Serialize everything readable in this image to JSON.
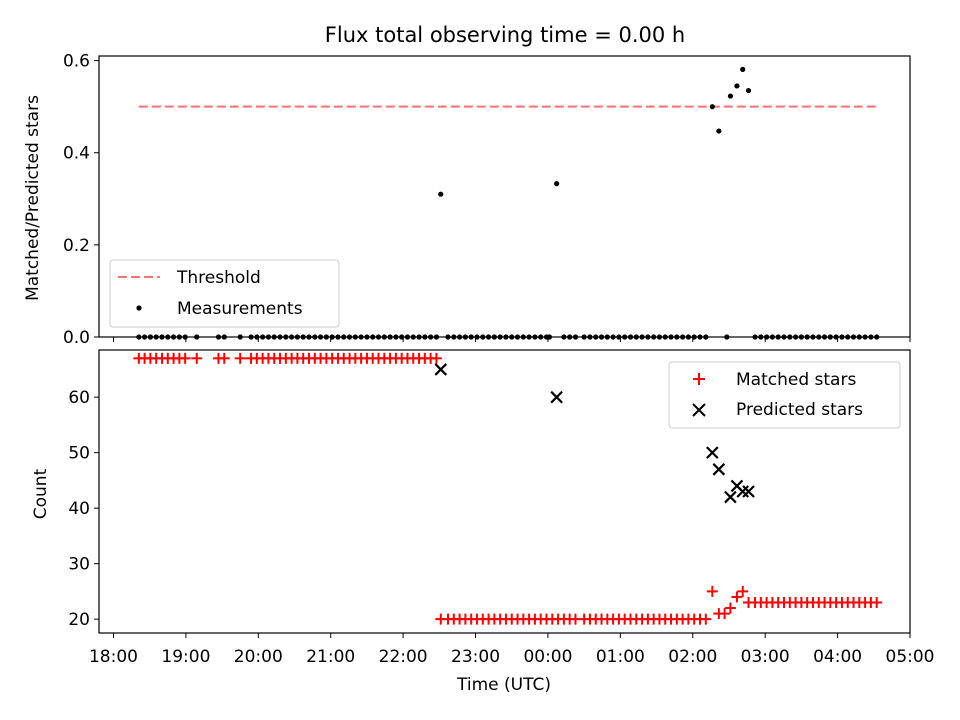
{
  "chart_data": [
    {
      "type": "scatter",
      "title": "Flux total observing time = 0.00 h",
      "xlabel": "",
      "ylabel": "Matched/Predicted stars",
      "xlim_hours": [
        17.8,
        29.0
      ],
      "ylim": [
        0,
        0.61
      ],
      "yticks": [
        0.0,
        0.2,
        0.4,
        0.6
      ],
      "ytick_labels": [
        "0.0",
        "0.2",
        "0.4",
        "0.6"
      ],
      "legend_position": "lower-left",
      "threshold": {
        "name": "Threshold",
        "value": 0.5,
        "x_range_hours": [
          18.35,
          28.55
        ],
        "color": "#ff7070",
        "style": "dashed"
      },
      "series": [
        {
          "name": "Measurements",
          "marker": "dot",
          "color": "#000000",
          "points": [
            [
              18.35,
              0
            ],
            [
              18.43,
              0
            ],
            [
              18.51,
              0
            ],
            [
              18.59,
              0
            ],
            [
              18.67,
              0
            ],
            [
              18.75,
              0
            ],
            [
              18.83,
              0
            ],
            [
              18.91,
              0
            ],
            [
              18.99,
              0
            ],
            [
              19.15,
              0
            ],
            [
              19.45,
              0
            ],
            [
              19.53,
              0
            ],
            [
              19.75,
              0
            ],
            [
              19.9,
              0
            ],
            [
              19.98,
              0
            ],
            [
              20.06,
              0
            ],
            [
              20.14,
              0
            ],
            [
              20.22,
              0
            ],
            [
              20.3,
              0
            ],
            [
              20.38,
              0
            ],
            [
              20.46,
              0
            ],
            [
              20.54,
              0
            ],
            [
              20.62,
              0
            ],
            [
              20.7,
              0
            ],
            [
              20.78,
              0
            ],
            [
              20.86,
              0
            ],
            [
              20.94,
              0
            ],
            [
              21.02,
              0
            ],
            [
              21.1,
              0
            ],
            [
              21.18,
              0
            ],
            [
              21.26,
              0
            ],
            [
              21.34,
              0
            ],
            [
              21.42,
              0
            ],
            [
              21.5,
              0
            ],
            [
              21.58,
              0
            ],
            [
              21.66,
              0
            ],
            [
              21.74,
              0
            ],
            [
              21.82,
              0
            ],
            [
              21.9,
              0
            ],
            [
              21.98,
              0
            ],
            [
              22.06,
              0
            ],
            [
              22.14,
              0
            ],
            [
              22.22,
              0
            ],
            [
              22.3,
              0
            ],
            [
              22.38,
              0
            ],
            [
              22.46,
              0
            ],
            [
              22.52,
              0.31
            ],
            [
              22.62,
              0
            ],
            [
              22.7,
              0
            ],
            [
              22.78,
              0
            ],
            [
              22.86,
              0
            ],
            [
              22.94,
              0
            ],
            [
              23.02,
              0
            ],
            [
              23.1,
              0
            ],
            [
              23.18,
              0
            ],
            [
              23.26,
              0
            ],
            [
              23.34,
              0
            ],
            [
              23.42,
              0
            ],
            [
              23.5,
              0
            ],
            [
              23.58,
              0
            ],
            [
              23.66,
              0
            ],
            [
              23.74,
              0
            ],
            [
              23.82,
              0
            ],
            [
              23.9,
              0
            ],
            [
              23.98,
              0
            ],
            [
              24.02,
              0
            ],
            [
              24.12,
              0.333
            ],
            [
              24.22,
              0
            ],
            [
              24.3,
              0
            ],
            [
              24.38,
              0
            ],
            [
              24.5,
              0
            ],
            [
              24.58,
              0
            ],
            [
              24.66,
              0
            ],
            [
              24.74,
              0
            ],
            [
              24.82,
              0
            ],
            [
              24.9,
              0
            ],
            [
              24.98,
              0
            ],
            [
              25.06,
              0
            ],
            [
              25.14,
              0
            ],
            [
              25.22,
              0
            ],
            [
              25.3,
              0
            ],
            [
              25.38,
              0
            ],
            [
              25.46,
              0
            ],
            [
              25.54,
              0
            ],
            [
              25.62,
              0
            ],
            [
              25.7,
              0
            ],
            [
              25.78,
              0
            ],
            [
              25.86,
              0
            ],
            [
              25.94,
              0
            ],
            [
              26.02,
              0
            ],
            [
              26.1,
              0
            ],
            [
              26.18,
              0
            ],
            [
              26.27,
              0.5
            ],
            [
              26.36,
              0.447
            ],
            [
              26.47,
              0
            ],
            [
              26.52,
              0.523
            ],
            [
              26.61,
              0.545
            ],
            [
              26.69,
              0.581
            ],
            [
              26.77,
              0.535
            ],
            [
              26.86,
              0
            ],
            [
              26.94,
              0
            ],
            [
              27.02,
              0
            ],
            [
              27.1,
              0
            ],
            [
              27.18,
              0
            ],
            [
              27.26,
              0
            ],
            [
              27.34,
              0
            ],
            [
              27.42,
              0
            ],
            [
              27.5,
              0
            ],
            [
              27.58,
              0
            ],
            [
              27.66,
              0
            ],
            [
              27.74,
              0
            ],
            [
              27.82,
              0
            ],
            [
              27.9,
              0
            ],
            [
              27.98,
              0
            ],
            [
              28.06,
              0
            ],
            [
              28.14,
              0
            ],
            [
              28.22,
              0
            ],
            [
              28.3,
              0
            ],
            [
              28.38,
              0
            ],
            [
              28.46,
              0
            ],
            [
              28.54,
              0
            ]
          ]
        }
      ]
    },
    {
      "type": "scatter",
      "title": "",
      "xlabel": "Time (UTC)",
      "ylabel": "Count",
      "xlim_hours": [
        17.8,
        29.0
      ],
      "ylim": [
        17.5,
        68.5
      ],
      "yticks": [
        20,
        30,
        40,
        50,
        60
      ],
      "ytick_labels": [
        "20",
        "30",
        "40",
        "50",
        "60"
      ],
      "xticks_hours": [
        18,
        19,
        20,
        21,
        22,
        23,
        24,
        25,
        26,
        27,
        28,
        29
      ],
      "xtick_labels": [
        "18:00",
        "19:00",
        "20:00",
        "21:00",
        "22:00",
        "23:00",
        "00:00",
        "01:00",
        "02:00",
        "03:00",
        "04:00",
        "05:00"
      ],
      "legend_position": "top-right",
      "series": [
        {
          "name": "Matched stars",
          "marker": "plus",
          "color": "#ff0000",
          "points": [
            [
              18.35,
              67
            ],
            [
              18.43,
              67
            ],
            [
              18.51,
              67
            ],
            [
              18.59,
              67
            ],
            [
              18.67,
              67
            ],
            [
              18.75,
              67
            ],
            [
              18.83,
              67
            ],
            [
              18.91,
              67
            ],
            [
              18.99,
              67
            ],
            [
              19.15,
              67
            ],
            [
              19.45,
              67
            ],
            [
              19.53,
              67
            ],
            [
              19.75,
              67
            ],
            [
              19.9,
              67
            ],
            [
              19.98,
              67
            ],
            [
              20.06,
              67
            ],
            [
              20.14,
              67
            ],
            [
              20.22,
              67
            ],
            [
              20.3,
              67
            ],
            [
              20.38,
              67
            ],
            [
              20.46,
              67
            ],
            [
              20.54,
              67
            ],
            [
              20.62,
              67
            ],
            [
              20.7,
              67
            ],
            [
              20.78,
              67
            ],
            [
              20.86,
              67
            ],
            [
              20.94,
              67
            ],
            [
              21.02,
              67
            ],
            [
              21.1,
              67
            ],
            [
              21.18,
              67
            ],
            [
              21.26,
              67
            ],
            [
              21.34,
              67
            ],
            [
              21.42,
              67
            ],
            [
              21.5,
              67
            ],
            [
              21.58,
              67
            ],
            [
              21.66,
              67
            ],
            [
              21.74,
              67
            ],
            [
              21.82,
              67
            ],
            [
              21.9,
              67
            ],
            [
              21.98,
              67
            ],
            [
              22.06,
              67
            ],
            [
              22.14,
              67
            ],
            [
              22.22,
              67
            ],
            [
              22.3,
              67
            ],
            [
              22.38,
              67
            ],
            [
              22.46,
              67
            ],
            [
              22.52,
              20
            ],
            [
              22.62,
              20
            ],
            [
              22.7,
              20
            ],
            [
              22.78,
              20
            ],
            [
              22.86,
              20
            ],
            [
              22.94,
              20
            ],
            [
              23.02,
              20
            ],
            [
              23.1,
              20
            ],
            [
              23.18,
              20
            ],
            [
              23.26,
              20
            ],
            [
              23.34,
              20
            ],
            [
              23.42,
              20
            ],
            [
              23.5,
              20
            ],
            [
              23.58,
              20
            ],
            [
              23.66,
              20
            ],
            [
              23.74,
              20
            ],
            [
              23.82,
              20
            ],
            [
              23.9,
              20
            ],
            [
              23.98,
              20
            ],
            [
              24.06,
              20
            ],
            [
              24.14,
              20
            ],
            [
              24.22,
              20
            ],
            [
              24.3,
              20
            ],
            [
              24.38,
              20
            ],
            [
              24.5,
              20
            ],
            [
              24.58,
              20
            ],
            [
              24.66,
              20
            ],
            [
              24.74,
              20
            ],
            [
              24.82,
              20
            ],
            [
              24.9,
              20
            ],
            [
              24.98,
              20
            ],
            [
              25.06,
              20
            ],
            [
              25.14,
              20
            ],
            [
              25.22,
              20
            ],
            [
              25.3,
              20
            ],
            [
              25.38,
              20
            ],
            [
              25.46,
              20
            ],
            [
              25.54,
              20
            ],
            [
              25.62,
              20
            ],
            [
              25.7,
              20
            ],
            [
              25.78,
              20
            ],
            [
              25.86,
              20
            ],
            [
              25.94,
              20
            ],
            [
              26.02,
              20
            ],
            [
              26.1,
              20
            ],
            [
              26.18,
              20
            ],
            [
              26.27,
              25
            ],
            [
              26.36,
              21
            ],
            [
              26.44,
              21
            ],
            [
              26.52,
              22
            ],
            [
              26.61,
              24
            ],
            [
              26.69,
              25
            ],
            [
              26.77,
              23
            ],
            [
              26.86,
              23
            ],
            [
              26.94,
              23
            ],
            [
              27.02,
              23
            ],
            [
              27.1,
              23
            ],
            [
              27.18,
              23
            ],
            [
              27.26,
              23
            ],
            [
              27.34,
              23
            ],
            [
              27.42,
              23
            ],
            [
              27.5,
              23
            ],
            [
              27.58,
              23
            ],
            [
              27.66,
              23
            ],
            [
              27.74,
              23
            ],
            [
              27.82,
              23
            ],
            [
              27.9,
              23
            ],
            [
              27.98,
              23
            ],
            [
              28.06,
              23
            ],
            [
              28.14,
              23
            ],
            [
              28.22,
              23
            ],
            [
              28.3,
              23
            ],
            [
              28.38,
              23
            ],
            [
              28.46,
              23
            ],
            [
              28.54,
              23
            ]
          ]
        },
        {
          "name": "Predicted stars",
          "marker": "x",
          "color": "#000000",
          "points": [
            [
              22.52,
              65
            ],
            [
              24.12,
              60
            ],
            [
              26.27,
              50
            ],
            [
              26.36,
              47
            ],
            [
              26.52,
              42
            ],
            [
              26.61,
              44
            ],
            [
              26.69,
              43
            ],
            [
              26.77,
              43
            ]
          ]
        }
      ]
    }
  ]
}
